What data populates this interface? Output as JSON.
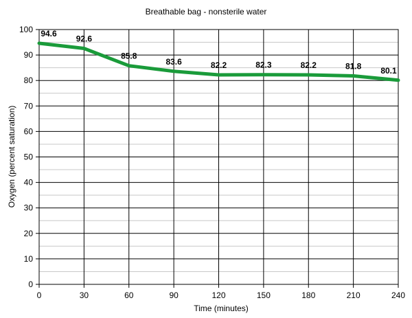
{
  "chart_data": {
    "type": "line",
    "title": "Breathable bag - nonsterile water",
    "xlabel": "Time  (minutes)",
    "ylabel": "Oxygen (percent saturation)",
    "xlim": [
      0,
      240
    ],
    "ylim": [
      0,
      100
    ],
    "x_ticks": [
      0,
      30,
      60,
      90,
      120,
      150,
      180,
      210,
      240
    ],
    "y_ticks": [
      0,
      10,
      20,
      30,
      40,
      50,
      60,
      70,
      80,
      90,
      100
    ],
    "y_minor_step": 5,
    "grid": true,
    "legend": "none",
    "series": [
      {
        "color": "#1a9b3a",
        "x": [
          0,
          30,
          60,
          90,
          120,
          150,
          180,
          210,
          240
        ],
        "values": [
          94.6,
          92.6,
          85.8,
          83.6,
          82.2,
          82.3,
          82.2,
          81.8,
          80.1
        ],
        "labels": [
          "94.6",
          "92.6",
          "85.8",
          "83.6",
          "82.2",
          "82.3",
          "82.2",
          "81.8",
          "80.1"
        ]
      }
    ]
  }
}
